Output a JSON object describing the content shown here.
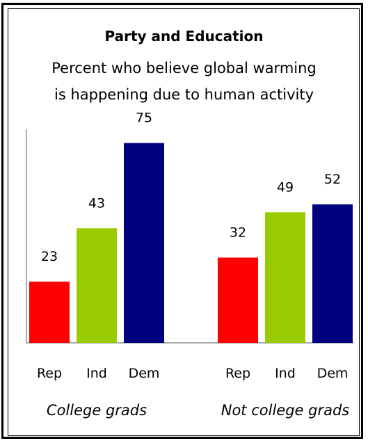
{
  "chart_data": {
    "type": "bar",
    "title": "Party and Education",
    "subtitle": [
      "Percent who believe global warming",
      "is happening due to human activity"
    ],
    "groups": [
      {
        "name": "College grads",
        "categories": [
          "Rep",
          "Ind",
          "Dem"
        ],
        "values": [
          23,
          43,
          75
        ]
      },
      {
        "name": "Not college grads",
        "categories": [
          "Rep",
          "Ind",
          "Dem"
        ],
        "values": [
          32,
          49,
          52
        ]
      }
    ],
    "category_colors": {
      "Rep": "#ff0000",
      "Ind": "#99cc00",
      "Dem": "#000080"
    },
    "ylim": [
      0,
      77
    ],
    "grid": false,
    "legend": "none"
  }
}
